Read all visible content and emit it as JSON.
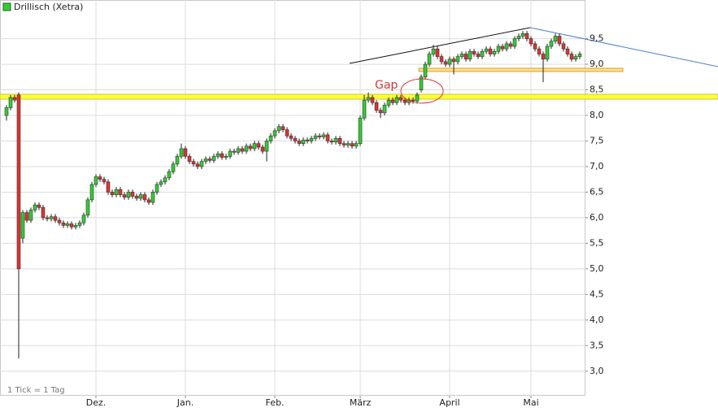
{
  "chart_data": {
    "type": "candlestick",
    "title": "Drillisch (Xetra)",
    "note": "1 Tick = 1 Tag",
    "annotation": "Gap",
    "up_color": "#33cc33",
    "down_color": "#dd3333",
    "grid": true,
    "xlim": [
      -1.6,
      142.4
    ],
    "xticks": [
      {
        "value": 22,
        "label": "Dez."
      },
      {
        "value": 44,
        "label": "Jan."
      },
      {
        "value": 66,
        "label": "Feb."
      },
      {
        "value": 87,
        "label": "März"
      },
      {
        "value": 109,
        "label": "April"
      },
      {
        "value": 129,
        "label": "Mai"
      }
    ],
    "ylim": [
      2.52,
      9.97
    ],
    "yticks": [
      {
        "value": 3,
        "label": "3,0"
      },
      {
        "value": 3.5,
        "label": "3,5"
      },
      {
        "value": 4,
        "label": "4,0"
      },
      {
        "value": 4.5,
        "label": "4,5"
      },
      {
        "value": 5,
        "label": "5,0"
      },
      {
        "value": 5.5,
        "label": "5,5"
      },
      {
        "value": 6,
        "label": "6,0"
      },
      {
        "value": 6.5,
        "label": "6,5"
      },
      {
        "value": 7,
        "label": "7,0"
      },
      {
        "value": 7.5,
        "label": "7,5"
      },
      {
        "value": 8,
        "label": "8,0"
      },
      {
        "value": 8.5,
        "label": "8,5"
      },
      {
        "value": 9,
        "label": "9,0"
      },
      {
        "value": 9.5,
        "label": "9,5"
      }
    ],
    "open": [
      8.0,
      8.15,
      8.35,
      8.4,
      5.6,
      6.1,
      5.95,
      6.15,
      6.25,
      6.2,
      6.0,
      5.98,
      6.02,
      5.95,
      5.9,
      5.85,
      5.88,
      5.82,
      5.85,
      5.9,
      6.05,
      6.35,
      6.65,
      6.8,
      6.75,
      6.7,
      6.5,
      6.45,
      6.55,
      6.45,
      6.4,
      6.5,
      6.42,
      6.38,
      6.45,
      6.35,
      6.3,
      6.5,
      6.65,
      6.7,
      6.78,
      6.9,
      7.05,
      7.2,
      7.35,
      7.2,
      7.1,
      7.05,
      7.0,
      7.1,
      7.15,
      7.12,
      7.2,
      7.25,
      7.18,
      7.2,
      7.3,
      7.28,
      7.35,
      7.3,
      7.4,
      7.35,
      7.45,
      7.38,
      7.3,
      7.5,
      7.6,
      7.7,
      7.78,
      7.72,
      7.6,
      7.55,
      7.5,
      7.45,
      7.52,
      7.5,
      7.55,
      7.6,
      7.58,
      7.62,
      7.5,
      7.48,
      7.55,
      7.45,
      7.42,
      7.45,
      7.4,
      7.45,
      7.95,
      8.3,
      8.35,
      8.25,
      8.1,
      8.05,
      8.2,
      8.3,
      8.25,
      8.35,
      8.3,
      8.25,
      8.3,
      8.28,
      8.5,
      8.75,
      9.0,
      9.2,
      9.3,
      9.15,
      9.05,
      9.0,
      9.1,
      9.05,
      9.15,
      9.2,
      9.1,
      9.25,
      9.2,
      9.15,
      9.25,
      9.3,
      9.2,
      9.25,
      9.35,
      9.3,
      9.4,
      9.35,
      9.5,
      9.55,
      9.6,
      9.5,
      9.4,
      9.3,
      9.2,
      9.1,
      9.35,
      9.45,
      9.55,
      9.4,
      9.3,
      9.2,
      9.1,
      9.15
    ],
    "high": [
      8.2,
      8.4,
      8.4,
      8.45,
      6.15,
      6.15,
      6.2,
      6.3,
      6.3,
      6.25,
      6.05,
      6.07,
      6.07,
      6.0,
      5.95,
      5.93,
      5.93,
      5.9,
      5.95,
      6.1,
      6.4,
      6.7,
      6.85,
      6.85,
      6.8,
      6.75,
      6.55,
      6.6,
      6.6,
      6.5,
      6.55,
      6.55,
      6.47,
      6.5,
      6.5,
      6.4,
      6.55,
      6.7,
      6.75,
      6.83,
      6.95,
      7.1,
      7.25,
      7.45,
      7.4,
      7.25,
      7.15,
      7.1,
      7.15,
      7.2,
      7.2,
      7.25,
      7.3,
      7.3,
      7.25,
      7.35,
      7.35,
      7.4,
      7.4,
      7.45,
      7.45,
      7.5,
      7.5,
      7.43,
      7.55,
      7.65,
      7.75,
      7.83,
      7.83,
      7.77,
      7.65,
      7.6,
      7.55,
      7.57,
      7.57,
      7.6,
      7.65,
      7.65,
      7.67,
      7.67,
      7.55,
      7.6,
      7.6,
      7.5,
      7.5,
      7.5,
      7.5,
      8.0,
      8.4,
      8.45,
      8.4,
      8.3,
      8.15,
      8.25,
      8.35,
      8.35,
      8.4,
      8.4,
      8.35,
      8.35,
      8.35,
      8.45,
      8.8,
      9.05,
      9.25,
      9.38,
      9.35,
      9.2,
      9.1,
      9.15,
      9.15,
      9.2,
      9.25,
      9.25,
      9.3,
      9.3,
      9.25,
      9.3,
      9.35,
      9.35,
      9.3,
      9.4,
      9.4,
      9.45,
      9.45,
      9.55,
      9.6,
      9.65,
      9.65,
      9.55,
      9.45,
      9.35,
      9.25,
      9.4,
      9.5,
      9.6,
      9.6,
      9.45,
      9.35,
      9.25,
      9.2,
      9.25
    ],
    "low": [
      7.9,
      8.1,
      8.25,
      3.25,
      5.5,
      5.9,
      5.9,
      6.1,
      6.15,
      5.95,
      5.93,
      5.93,
      5.9,
      5.85,
      5.8,
      5.8,
      5.77,
      5.77,
      5.8,
      5.85,
      6.0,
      6.3,
      6.6,
      6.7,
      6.65,
      6.45,
      6.4,
      6.4,
      6.4,
      6.35,
      6.35,
      6.37,
      6.33,
      6.33,
      6.3,
      6.25,
      6.25,
      6.45,
      6.6,
      6.65,
      6.73,
      6.85,
      7.0,
      7.15,
      7.15,
      7.05,
      7.0,
      6.95,
      6.95,
      7.05,
      7.07,
      7.07,
      7.15,
      7.13,
      7.13,
      7.15,
      7.23,
      7.23,
      7.25,
      7.25,
      7.3,
      7.3,
      7.33,
      7.25,
      7.1,
      7.45,
      7.55,
      7.65,
      7.67,
      7.55,
      7.5,
      7.45,
      7.4,
      7.4,
      7.45,
      7.45,
      7.5,
      7.53,
      7.53,
      7.45,
      7.43,
      7.43,
      7.4,
      7.37,
      7.37,
      7.35,
      7.35,
      7.4,
      7.9,
      8.25,
      8.2,
      8.05,
      7.95,
      8.0,
      8.15,
      8.2,
      8.2,
      8.25,
      8.2,
      8.2,
      8.23,
      8.23,
      8.45,
      8.7,
      8.95,
      9.15,
      9.1,
      9.0,
      8.95,
      8.95,
      8.8,
      9.0,
      9.1,
      9.05,
      9.05,
      9.15,
      9.1,
      9.1,
      9.2,
      9.15,
      9.15,
      9.2,
      9.25,
      9.25,
      9.3,
      9.3,
      9.45,
      9.5,
      9.45,
      9.35,
      9.25,
      9.15,
      8.65,
      9.05,
      9.3,
      9.4,
      9.35,
      9.25,
      9.15,
      9.05,
      9.05,
      9.1
    ],
    "close": [
      8.15,
      8.35,
      8.3,
      5.0,
      6.1,
      5.95,
      6.15,
      6.25,
      6.2,
      6.0,
      5.98,
      6.02,
      5.95,
      5.9,
      5.85,
      5.88,
      5.82,
      5.85,
      5.9,
      6.05,
      6.35,
      6.65,
      6.8,
      6.75,
      6.7,
      6.5,
      6.45,
      6.55,
      6.45,
      6.4,
      6.5,
      6.42,
      6.38,
      6.45,
      6.35,
      6.3,
      6.5,
      6.65,
      6.7,
      6.78,
      6.9,
      7.05,
      7.2,
      7.35,
      7.2,
      7.1,
      7.05,
      7.0,
      7.1,
      7.15,
      7.12,
      7.2,
      7.25,
      7.18,
      7.2,
      7.3,
      7.28,
      7.35,
      7.3,
      7.4,
      7.35,
      7.45,
      7.38,
      7.3,
      7.5,
      7.6,
      7.7,
      7.78,
      7.72,
      7.6,
      7.55,
      7.5,
      7.45,
      7.52,
      7.5,
      7.55,
      7.6,
      7.58,
      7.62,
      7.5,
      7.48,
      7.55,
      7.45,
      7.42,
      7.45,
      7.4,
      7.45,
      7.95,
      8.3,
      8.35,
      8.25,
      8.1,
      8.05,
      8.2,
      8.3,
      8.25,
      8.35,
      8.3,
      8.25,
      8.3,
      8.28,
      8.4,
      8.75,
      9.0,
      9.2,
      9.3,
      9.15,
      9.05,
      9.0,
      9.1,
      9.05,
      9.15,
      9.2,
      9.1,
      9.25,
      9.2,
      9.15,
      9.25,
      9.3,
      9.2,
      9.25,
      9.35,
      9.3,
      9.4,
      9.35,
      9.5,
      9.55,
      9.6,
      9.5,
      9.4,
      9.3,
      9.2,
      9.1,
      9.35,
      9.45,
      9.55,
      9.4,
      9.3,
      9.2,
      9.1,
      9.15,
      9.2
    ]
  }
}
